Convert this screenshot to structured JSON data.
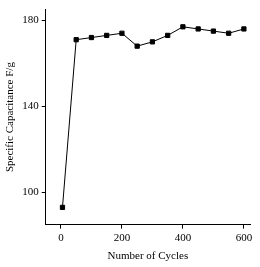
{
  "chart_data": {
    "type": "line",
    "x_label": "Number of Cycles",
    "y_label": "Specific Capacitance F/g",
    "x": [
      5,
      50,
      100,
      150,
      200,
      250,
      300,
      350,
      400,
      450,
      500,
      550,
      600
    ],
    "series": [
      {
        "color": "#000000",
        "marker": "square",
        "line_style": "solid",
        "values": [
          93,
          171,
          172,
          173,
          174,
          168,
          170,
          173,
          177,
          176,
          175,
          174,
          176
        ]
      }
    ],
    "xlim": [
      -50,
      620
    ],
    "xticks": [
      0,
      200,
      400,
      600
    ],
    "ylim": [
      85,
      185
    ],
    "yticks": [
      100,
      140,
      180
    ],
    "grid": false
  }
}
